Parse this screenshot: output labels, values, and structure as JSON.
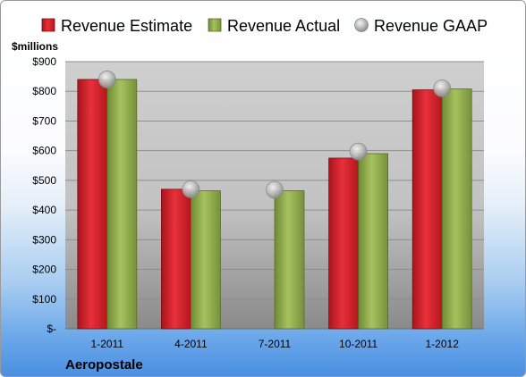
{
  "chart_data": {
    "type": "bar",
    "title": "",
    "ylabel": "$millions",
    "xlabel": "",
    "company": "Aeropostale",
    "categories": [
      "1-2011",
      "4-2011",
      "7-2011",
      "10-2011",
      "1-2012"
    ],
    "series": [
      {
        "name": "Revenue Estimate",
        "kind": "bar",
        "color": "#d01f27",
        "values": [
          840,
          470,
          null,
          575,
          805
        ]
      },
      {
        "name": "Revenue Actual",
        "kind": "bar",
        "color": "#8faa4a",
        "values": [
          840,
          465,
          465,
          590,
          808
        ]
      },
      {
        "name": "Revenue GAAP",
        "kind": "marker",
        "color": "#b9b9b9",
        "values": [
          840,
          470,
          468,
          597,
          810
        ]
      }
    ],
    "y_ticks": [
      0,
      100,
      200,
      300,
      400,
      500,
      600,
      700,
      800,
      900
    ],
    "y_tick_labels": [
      "$-",
      "$100",
      "$200",
      "$300",
      "$400",
      "$500",
      "$600",
      "$700",
      "$800",
      "$900"
    ],
    "ylim": [
      0,
      900
    ],
    "grid": true,
    "legend_position": "top"
  }
}
